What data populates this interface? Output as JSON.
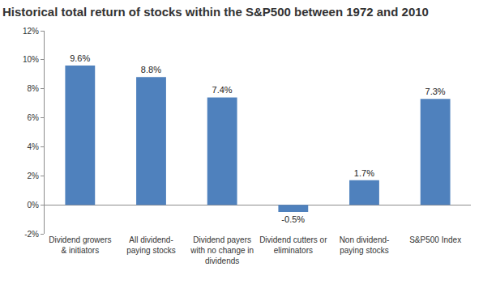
{
  "chart_data": {
    "type": "bar",
    "title": "Historical total return of stocks within the S&P500 between 1972 and 2010",
    "categories": [
      "Dividend growers\n& initiators",
      "All dividend-\npaying stocks",
      "Dividend payers\nwith no change in\ndividends",
      "Dividend cutters or\neliminators",
      "Non dividend-\npaying stocks",
      "S&P500 Index"
    ],
    "values": [
      9.6,
      8.8,
      7.4,
      -0.5,
      1.7,
      7.3
    ],
    "value_labels": [
      "9.6%",
      "8.8%",
      "7.4%",
      "-0.5%",
      "1.7%",
      "7.3%"
    ],
    "data_labels": true,
    "color": "#4f81bd",
    "ylim": [
      -2,
      12
    ],
    "yticks": [
      {
        "value": -2,
        "label": "-2%"
      },
      {
        "value": 0,
        "label": "0%"
      },
      {
        "value": 2,
        "label": "2%"
      },
      {
        "value": 4,
        "label": "4%"
      },
      {
        "value": 6,
        "label": "6%"
      },
      {
        "value": 8,
        "label": "8%"
      },
      {
        "value": 10,
        "label": "10%"
      },
      {
        "value": 12,
        "label": "12%"
      }
    ],
    "grid": false
  }
}
